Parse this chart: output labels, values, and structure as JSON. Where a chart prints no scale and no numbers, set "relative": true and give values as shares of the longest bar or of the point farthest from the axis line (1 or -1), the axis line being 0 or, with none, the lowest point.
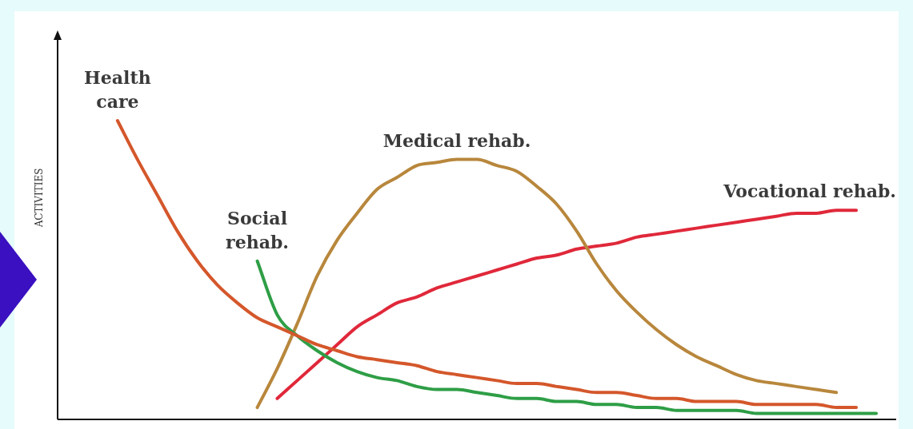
{
  "chart_data": {
    "type": "line",
    "relative": true,
    "ylabel": "ACTIVITIES",
    "categories": [
      null,
      null,
      null,
      null,
      null,
      null,
      null,
      null,
      null,
      null,
      null,
      null,
      null,
      null,
      null,
      null,
      null,
      null,
      null,
      null,
      null,
      null,
      null,
      null,
      null,
      null,
      null,
      null,
      null,
      null,
      null,
      null,
      null,
      null,
      null,
      null,
      null,
      null,
      null,
      null,
      null,
      null,
      null
    ],
    "series": [
      {
        "name": "Health care",
        "color": "#d4572b",
        "values": [
          null,
          null,
          null,
          1.0,
          0.87,
          0.75,
          0.63,
          0.53,
          0.45,
          0.39,
          0.34,
          0.31,
          0.28,
          0.25,
          0.23,
          0.21,
          0.2,
          0.19,
          0.18,
          0.16,
          0.15,
          0.14,
          0.13,
          0.12,
          0.12,
          0.11,
          0.1,
          0.09,
          0.09,
          0.08,
          0.07,
          0.07,
          0.06,
          0.06,
          0.06,
          0.05,
          0.05,
          0.05,
          0.05,
          0.04,
          0.04,
          null,
          null
        ]
      },
      {
        "name": "Social rehab.",
        "color": "#2e9e46",
        "values": [
          null,
          null,
          null,
          null,
          null,
          null,
          null,
          null,
          null,
          null,
          0.53,
          0.35,
          0.28,
          0.23,
          0.19,
          0.16,
          0.14,
          0.13,
          0.11,
          0.1,
          0.1,
          0.09,
          0.08,
          0.07,
          0.07,
          0.06,
          0.06,
          0.05,
          0.05,
          0.04,
          0.04,
          0.03,
          0.03,
          0.03,
          0.03,
          0.02,
          0.02,
          0.02,
          0.02,
          0.02,
          0.02,
          0.02,
          null
        ]
      },
      {
        "name": "Medical rehab.",
        "color": "#b8873c",
        "values": [
          null,
          null,
          null,
          null,
          null,
          null,
          null,
          null,
          null,
          null,
          0.04,
          0.17,
          0.32,
          0.48,
          0.6,
          0.69,
          0.77,
          0.81,
          0.85,
          0.86,
          0.87,
          0.87,
          0.85,
          0.83,
          0.78,
          0.72,
          0.63,
          0.52,
          0.43,
          0.36,
          0.3,
          0.25,
          0.21,
          0.18,
          0.15,
          0.13,
          0.12,
          0.11,
          0.1,
          0.09,
          null,
          null,
          null
        ]
      },
      {
        "name": "Vocational rehab.",
        "color": "#e0283a",
        "values": [
          null,
          null,
          null,
          null,
          null,
          null,
          null,
          null,
          null,
          null,
          null,
          0.07,
          0.13,
          0.19,
          0.25,
          0.31,
          0.35,
          0.39,
          0.41,
          0.44,
          0.46,
          0.48,
          0.5,
          0.52,
          0.54,
          0.55,
          0.57,
          0.58,
          0.59,
          0.61,
          0.62,
          0.63,
          0.64,
          0.65,
          0.66,
          0.67,
          0.68,
          0.69,
          0.69,
          0.7,
          0.7,
          null,
          null
        ]
      }
    ]
  }
}
